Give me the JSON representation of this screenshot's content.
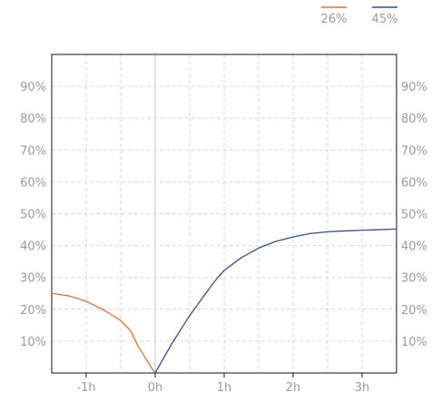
{
  "chart_data": {
    "type": "line",
    "title": "",
    "xlabel": "",
    "ylabel": "",
    "x_unit": "hours",
    "xlim": [
      -1.5,
      3.5
    ],
    "ylim": [
      0,
      100
    ],
    "x_ticks": [
      {
        "value": -1,
        "label": "-1h"
      },
      {
        "value": 0,
        "label": "0h"
      },
      {
        "value": 1,
        "label": "1h"
      },
      {
        "value": 2,
        "label": "2h"
      },
      {
        "value": 3,
        "label": "3h"
      }
    ],
    "y_ticks": [
      {
        "value": 10,
        "label": "10%"
      },
      {
        "value": 20,
        "label": "20%"
      },
      {
        "value": 30,
        "label": "30%"
      },
      {
        "value": 40,
        "label": "40%"
      },
      {
        "value": 50,
        "label": "50%"
      },
      {
        "value": 60,
        "label": "60%"
      },
      {
        "value": 70,
        "label": "70%"
      },
      {
        "value": 80,
        "label": "80%"
      },
      {
        "value": 90,
        "label": "90%"
      }
    ],
    "grid": true,
    "legend_position": "top-right",
    "series": [
      {
        "name": "26%",
        "color": "#e8702a",
        "points": [
          [
            -1.5,
            25
          ],
          [
            -1.25,
            24.2
          ],
          [
            -1.0,
            22.5
          ],
          [
            -0.75,
            19.8
          ],
          [
            -0.5,
            16.5
          ],
          [
            -0.35,
            13
          ],
          [
            -0.25,
            8.5
          ],
          [
            -0.15,
            5
          ],
          [
            -0.05,
            1.5
          ],
          [
            0,
            0
          ]
        ]
      },
      {
        "name": "45%",
        "color": "#2f4f9a",
        "points": [
          [
            0,
            0
          ],
          [
            0.25,
            9.5
          ],
          [
            0.5,
            18
          ],
          [
            0.75,
            25.5
          ],
          [
            0.9,
            29.8
          ],
          [
            1.0,
            32.2
          ],
          [
            1.25,
            36.2
          ],
          [
            1.5,
            39.2
          ],
          [
            1.75,
            41.3
          ],
          [
            2.0,
            42.7
          ],
          [
            2.25,
            43.8
          ],
          [
            2.5,
            44.3
          ],
          [
            2.75,
            44.6
          ],
          [
            3.0,
            44.8
          ],
          [
            3.25,
            45
          ],
          [
            3.5,
            45.2
          ]
        ]
      }
    ]
  }
}
